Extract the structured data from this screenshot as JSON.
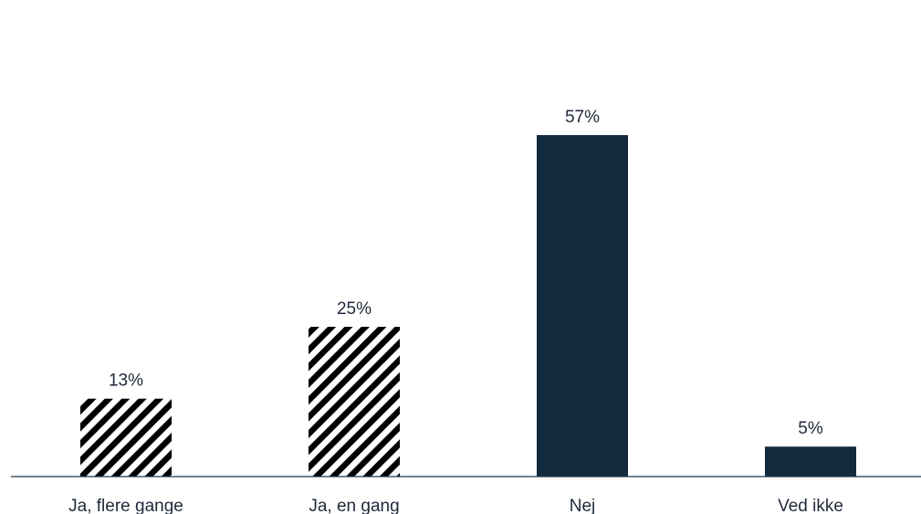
{
  "chart_data": {
    "type": "bar",
    "categories": [
      "Ja, flere gange",
      "Ja, en gang",
      "Nej",
      "Ved ikke"
    ],
    "values": [
      13,
      25,
      57,
      5
    ],
    "value_labels": [
      "13%",
      "25%",
      "57%",
      "5%"
    ],
    "bar_styles": [
      "hatched",
      "hatched",
      "solid",
      "solid"
    ],
    "ylim": [
      0,
      57
    ],
    "grid": false,
    "legend": "none",
    "colors": {
      "bar_fill": "#142a3e",
      "hatch": "#000000",
      "axis": "#1e3448",
      "text": "#1f2a3a"
    }
  }
}
